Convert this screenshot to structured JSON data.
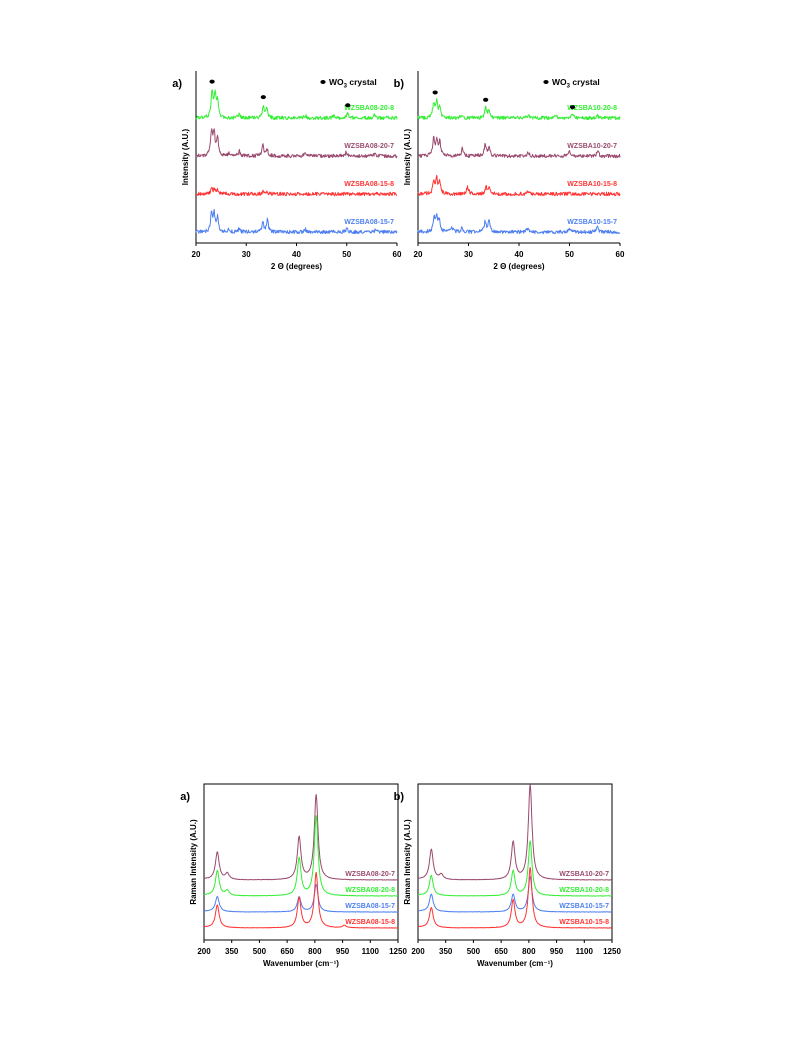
{
  "chart_data": [
    {
      "type": "line",
      "panel": "a)",
      "xlabel": "2 Θ (degrees)",
      "ylabel": "Intensity (A.U.)",
      "xlim": [
        20,
        60
      ],
      "xticks": [
        20,
        30,
        40,
        50,
        60
      ],
      "legend": {
        "marker": "●",
        "label": "WO",
        "sub": "3",
        "suffix": " crystal",
        "placement": "top-right"
      },
      "marker_positions": [
        23.2,
        33.4,
        50.2
      ],
      "series": [
        {
          "name": "WZSBA08-20-8",
          "color": "#33ee33",
          "offset": 3,
          "amplitude": 1.0,
          "peaks": [
            [
              23.2,
              1.0
            ],
            [
              23.8,
              0.9
            ],
            [
              24.3,
              0.6
            ],
            [
              28.6,
              0.15
            ],
            [
              33.4,
              0.5
            ],
            [
              34.1,
              0.35
            ],
            [
              41.8,
              0.1
            ],
            [
              47.4,
              0.08
            ],
            [
              50.2,
              0.22
            ],
            [
              55.5,
              0.1
            ]
          ]
        },
        {
          "name": "WZSBA08-20-7",
          "color": "#9a4a6e",
          "offset": 2,
          "amplitude": 1.0,
          "peaks": [
            [
              23.1,
              0.95
            ],
            [
              23.6,
              0.85
            ],
            [
              24.3,
              0.65
            ],
            [
              26.6,
              0.1
            ],
            [
              28.6,
              0.2
            ],
            [
              33.3,
              0.4
            ],
            [
              34.1,
              0.3
            ],
            [
              41.8,
              0.12
            ],
            [
              49.9,
              0.15
            ],
            [
              55.6,
              0.1
            ]
          ]
        },
        {
          "name": "WZSBA08-15-8",
          "color": "#ff3333",
          "offset": 1,
          "amplitude": 0.35,
          "peaks": [
            [
              23.1,
              0.6
            ],
            [
              23.7,
              0.55
            ],
            [
              24.3,
              0.4
            ],
            [
              33.4,
              0.3
            ],
            [
              34.1,
              0.25
            ],
            [
              41.8,
              0.08
            ],
            [
              50.0,
              0.12
            ]
          ]
        },
        {
          "name": "WZSBA08-15-7",
          "color": "#4d7ff0",
          "offset": 0,
          "amplitude": 1.0,
          "peaks": [
            [
              23.1,
              0.7
            ],
            [
              23.6,
              0.65
            ],
            [
              24.3,
              0.55
            ],
            [
              26.6,
              0.1
            ],
            [
              28.6,
              0.12
            ],
            [
              33.3,
              0.35
            ],
            [
              34.2,
              0.45
            ],
            [
              41.8,
              0.1
            ],
            [
              50.0,
              0.12
            ],
            [
              55.7,
              0.08
            ]
          ]
        }
      ]
    },
    {
      "type": "line",
      "panel": "b)",
      "xlabel": "2 Θ (degrees)",
      "ylabel": "Intensity (A.U.)",
      "xlim": [
        20,
        60
      ],
      "xticks": [
        20,
        30,
        40,
        50,
        60
      ],
      "legend": {
        "marker": "●",
        "label": "WO",
        "sub": "3",
        "suffix": " crystal",
        "placement": "top-right"
      },
      "marker_positions": [
        23.4,
        33.4,
        50.6
      ],
      "series": [
        {
          "name": "WZSBA10-20-8",
          "color": "#33ee33",
          "offset": 3,
          "amplitude": 1.0,
          "peaks": [
            [
              23.1,
              0.55
            ],
            [
              23.7,
              0.6
            ],
            [
              24.3,
              0.4
            ],
            [
              28.6,
              0.1
            ],
            [
              33.4,
              0.4
            ],
            [
              34.0,
              0.25
            ],
            [
              41.8,
              0.12
            ],
            [
              47.3,
              0.08
            ],
            [
              50.6,
              0.15
            ],
            [
              55.5,
              0.1
            ]
          ]
        },
        {
          "name": "WZSBA10-20-7",
          "color": "#9a4a6e",
          "offset": 2,
          "amplitude": 1.0,
          "peaks": [
            [
              23.1,
              0.65
            ],
            [
              23.7,
              0.6
            ],
            [
              24.3,
              0.55
            ],
            [
              28.8,
              0.3
            ],
            [
              33.3,
              0.45
            ],
            [
              34.1,
              0.35
            ],
            [
              41.8,
              0.15
            ],
            [
              50.0,
              0.15
            ],
            [
              55.6,
              0.18
            ]
          ]
        },
        {
          "name": "WZSBA10-15-8",
          "color": "#ff3333",
          "offset": 1,
          "amplitude": 1.0,
          "peaks": [
            [
              23.1,
              0.5
            ],
            [
              23.7,
              0.55
            ],
            [
              24.3,
              0.45
            ],
            [
              29.8,
              0.3
            ],
            [
              33.5,
              0.25
            ],
            [
              34.1,
              0.2
            ],
            [
              41.8,
              0.1
            ],
            [
              50.0,
              0.1
            ]
          ]
        },
        {
          "name": "WZSBA10-15-7",
          "color": "#4d7ff0",
          "offset": 0,
          "amplitude": 1.0,
          "peaks": [
            [
              23.2,
              0.5
            ],
            [
              23.7,
              0.55
            ],
            [
              24.2,
              0.45
            ],
            [
              26.7,
              0.2
            ],
            [
              28.7,
              0.18
            ],
            [
              33.3,
              0.4
            ],
            [
              34.1,
              0.45
            ],
            [
              41.6,
              0.15
            ],
            [
              50.0,
              0.12
            ],
            [
              55.5,
              0.18
            ]
          ]
        }
      ]
    },
    {
      "type": "line",
      "panel": "a)",
      "xlabel": "Wavenumber (cm⁻¹)",
      "ylabel": "Raman Intensity (A.U.)",
      "xlim": [
        200,
        1250
      ],
      "xticks": [
        200,
        350,
        500,
        650,
        800,
        950,
        1100,
        1250
      ],
      "series": [
        {
          "name": "WZSBA08-20-7",
          "color": "#9a4a6e",
          "offset": 3,
          "amplitude": 1.0,
          "peaks": [
            [
              272,
              0.55
            ],
            [
              326,
              0.12
            ],
            [
              715,
              0.85
            ],
            [
              807,
              1.7
            ]
          ]
        },
        {
          "name": "WZSBA08-20-8",
          "color": "#33ee33",
          "offset": 2,
          "amplitude": 1.0,
          "peaks": [
            [
              272,
              0.5
            ],
            [
              326,
              0.1
            ],
            [
              715,
              0.75
            ],
            [
              807,
              1.6
            ]
          ]
        },
        {
          "name": "WZSBA08-15-7",
          "color": "#4d7ff0",
          "offset": 1,
          "amplitude": 1.0,
          "peaks": [
            [
              272,
              0.3
            ],
            [
              715,
              0.3
            ],
            [
              807,
              0.55
            ]
          ]
        },
        {
          "name": "WZSBA08-15-8",
          "color": "#ff3333",
          "offset": 0,
          "amplitude": 1.0,
          "peaks": [
            [
              272,
              0.45
            ],
            [
              715,
              0.6
            ],
            [
              807,
              1.1
            ],
            [
              960,
              0.05
            ]
          ]
        }
      ]
    },
    {
      "type": "line",
      "panel": "b)",
      "xlabel": "Wavenumber (cm⁻¹)",
      "ylabel": "Raman Intensity (A.U.)",
      "xlim": [
        200,
        1250
      ],
      "xticks": [
        200,
        350,
        500,
        650,
        800,
        950,
        1100,
        1250
      ],
      "series": [
        {
          "name": "WZSBA10-20-7",
          "color": "#9a4a6e",
          "offset": 3,
          "amplitude": 1.0,
          "peaks": [
            [
              272,
              0.6
            ],
            [
              326,
              0.1
            ],
            [
              715,
              0.75
            ],
            [
              807,
              1.9
            ]
          ]
        },
        {
          "name": "WZSBA10-20-8",
          "color": "#33ee33",
          "offset": 2,
          "amplitude": 1.0,
          "peaks": [
            [
              272,
              0.4
            ],
            [
              715,
              0.5
            ],
            [
              807,
              1.1
            ]
          ]
        },
        {
          "name": "WZSBA10-15-7",
          "color": "#4d7ff0",
          "offset": 1,
          "amplitude": 1.0,
          "peaks": [
            [
              272,
              0.35
            ],
            [
              715,
              0.35
            ],
            [
              807,
              0.7
            ]
          ]
        },
        {
          "name": "WZSBA10-15-8",
          "color": "#ff3333",
          "offset": 0,
          "amplitude": 1.0,
          "peaks": [
            [
              272,
              0.4
            ],
            [
              715,
              0.55
            ],
            [
              807,
              1.2
            ]
          ]
        }
      ]
    }
  ]
}
